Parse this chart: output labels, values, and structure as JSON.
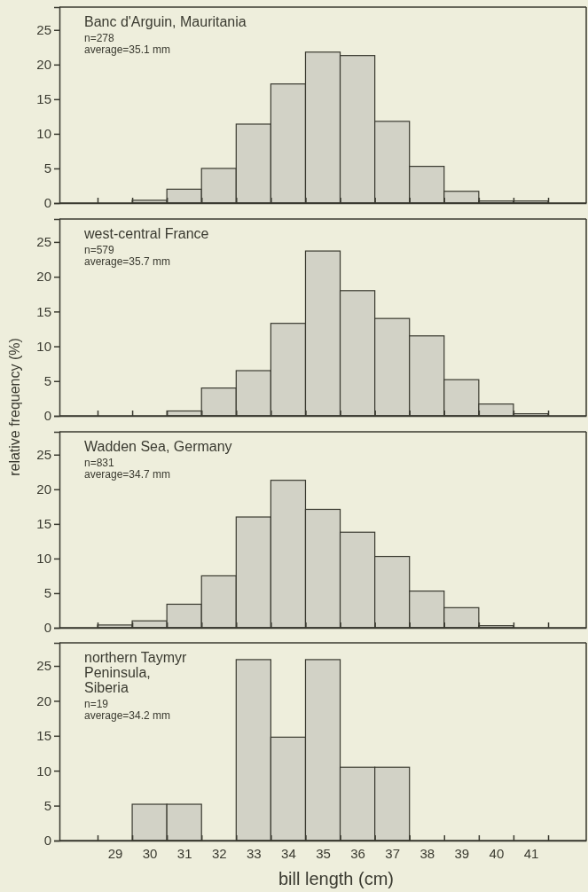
{
  "chart_data": [
    {
      "type": "histogram",
      "title": "Banc d'Arguin, Mauritania",
      "annotations": [
        "n=278",
        "average=35.1 mm"
      ],
      "bins": [
        28.5,
        29.5,
        30.5,
        31.5,
        32.5,
        33.5,
        34.5,
        35.5,
        36.5,
        37.5,
        38.5,
        39.5,
        40.5,
        41.5
      ],
      "values": [
        0,
        0.4,
        2.0,
        5.0,
        11.4,
        17.2,
        21.8,
        21.3,
        11.8,
        5.3,
        1.7,
        0.3,
        0.3
      ],
      "color": "#d2d2c6",
      "xlim": [
        27.4,
        42.6
      ],
      "ylim": [
        0,
        28.3
      ],
      "yticks": [
        0,
        5,
        10,
        15,
        20,
        25
      ],
      "tick_labels": "y",
      "xticks": [
        {
          "value": 28.5,
          "label": null
        },
        29,
        {
          "value": 29.5,
          "label": null
        },
        30,
        {
          "value": 30.5,
          "label": null
        },
        31,
        {
          "value": 31.5,
          "label": null
        },
        32,
        {
          "value": 32.5,
          "label": null
        },
        33,
        {
          "value": 33.5,
          "label": null
        },
        34,
        {
          "value": 34.5,
          "label": null
        },
        35,
        {
          "value": 35.5,
          "label": null
        },
        36,
        {
          "value": 36.5,
          "label": null
        },
        37,
        {
          "value": 37.5,
          "label": null
        },
        38,
        {
          "value": 38.5,
          "label": null
        },
        39,
        {
          "value": 39.5,
          "label": null
        },
        40,
        {
          "value": 40.5,
          "label": null
        },
        41,
        {
          "value": 41.5,
          "label": null
        }
      ]
    },
    {
      "type": "histogram",
      "title": "west-central France",
      "annotations": [
        "n=579",
        "average=35.7 mm"
      ],
      "ylabel": "relative frequency (%)",
      "bins": [
        28.5,
        29.5,
        30.5,
        31.5,
        32.5,
        33.5,
        34.5,
        35.5,
        36.5,
        37.5,
        38.5,
        39.5,
        40.5,
        41.5
      ],
      "values": [
        0,
        0,
        0.7,
        4.0,
        6.5,
        13.3,
        23.7,
        18.0,
        14.0,
        11.5,
        5.2,
        1.7,
        0.3
      ],
      "color": "#d2d2c6",
      "xlim": [
        27.4,
        42.6
      ],
      "ylim": [
        0,
        28.3
      ],
      "yticks": [
        0,
        5,
        10,
        15,
        20,
        25
      ],
      "tick_labels": "y",
      "xticks": [
        {
          "value": 28.5,
          "label": null
        },
        29,
        {
          "value": 29.5,
          "label": null
        },
        30,
        {
          "value": 30.5,
          "label": null
        },
        31,
        {
          "value": 31.5,
          "label": null
        },
        32,
        {
          "value": 32.5,
          "label": null
        },
        33,
        {
          "value": 33.5,
          "label": null
        },
        34,
        {
          "value": 34.5,
          "label": null
        },
        35,
        {
          "value": 35.5,
          "label": null
        },
        36,
        {
          "value": 36.5,
          "label": null
        },
        37,
        {
          "value": 37.5,
          "label": null
        },
        38,
        {
          "value": 38.5,
          "label": null
        },
        39,
        {
          "value": 39.5,
          "label": null
        },
        40,
        {
          "value": 40.5,
          "label": null
        },
        41,
        {
          "value": 41.5,
          "label": null
        }
      ]
    },
    {
      "type": "histogram",
      "title": "Wadden Sea, Germany",
      "annotations": [
        "n=831",
        "average=34.7 mm"
      ],
      "bins": [
        28.5,
        29.5,
        30.5,
        31.5,
        32.5,
        33.5,
        34.5,
        35.5,
        36.5,
        37.5,
        38.5,
        39.5,
        40.5,
        41.5
      ],
      "values": [
        0.4,
        1.0,
        3.4,
        7.5,
        16.0,
        21.3,
        17.1,
        13.8,
        10.3,
        5.3,
        2.9,
        0.3,
        0
      ],
      "color": "#d2d2c6",
      "xlim": [
        27.4,
        42.6
      ],
      "ylim": [
        0,
        28.3
      ],
      "yticks": [
        0,
        5,
        10,
        15,
        20,
        25
      ],
      "tick_labels": "y",
      "xticks": [
        {
          "value": 28.5,
          "label": null
        },
        29,
        {
          "value": 29.5,
          "label": null
        },
        30,
        {
          "value": 30.5,
          "label": null
        },
        31,
        {
          "value": 31.5,
          "label": null
        },
        32,
        {
          "value": 32.5,
          "label": null
        },
        33,
        {
          "value": 33.5,
          "label": null
        },
        34,
        {
          "value": 34.5,
          "label": null
        },
        35,
        {
          "value": 35.5,
          "label": null
        },
        36,
        {
          "value": 36.5,
          "label": null
        },
        37,
        {
          "value": 37.5,
          "label": null
        },
        38,
        {
          "value": 38.5,
          "label": null
        },
        39,
        {
          "value": 39.5,
          "label": null
        },
        40,
        {
          "value": 40.5,
          "label": null
        },
        41,
        {
          "value": 41.5,
          "label": null
        }
      ]
    },
    {
      "type": "histogram",
      "title": "northern Taymyr\nPeninsula,\nSiberia",
      "annotations": [
        "n=19",
        "average=34.2 mm"
      ],
      "xlabel": "bill length (cm)",
      "bins": [
        28.5,
        29.5,
        30.5,
        31.5,
        32.5,
        33.5,
        34.5,
        35.5,
        36.5,
        37.5,
        38.5,
        39.5,
        40.5,
        41.5
      ],
      "values": [
        0,
        5.2,
        5.2,
        0,
        25.9,
        14.8,
        25.9,
        10.5,
        10.5,
        0,
        0,
        0,
        0
      ],
      "color": "#d2d2c6",
      "xlim": [
        27.4,
        42.6
      ],
      "ylim": [
        0,
        28.3
      ],
      "yticks": [
        0,
        5,
        10,
        15,
        20,
        25
      ],
      "xticks": [
        {
          "value": 28.5,
          "label": null
        },
        29,
        {
          "value": 29.5,
          "label": null
        },
        30,
        {
          "value": 30.5,
          "label": null
        },
        31,
        {
          "value": 31.5,
          "label": null
        },
        32,
        {
          "value": 32.5,
          "label": null
        },
        33,
        {
          "value": 33.5,
          "label": null
        },
        34,
        {
          "value": 34.5,
          "label": null
        },
        35,
        {
          "value": 35.5,
          "label": null
        },
        36,
        {
          "value": 36.5,
          "label": null
        },
        37,
        {
          "value": 37.5,
          "label": null
        },
        38,
        {
          "value": 38.5,
          "label": null
        },
        39,
        {
          "value": 39.5,
          "label": null
        },
        40,
        {
          "value": 40.5,
          "label": null
        },
        41,
        {
          "value": 41.5,
          "label": null
        }
      ]
    }
  ]
}
